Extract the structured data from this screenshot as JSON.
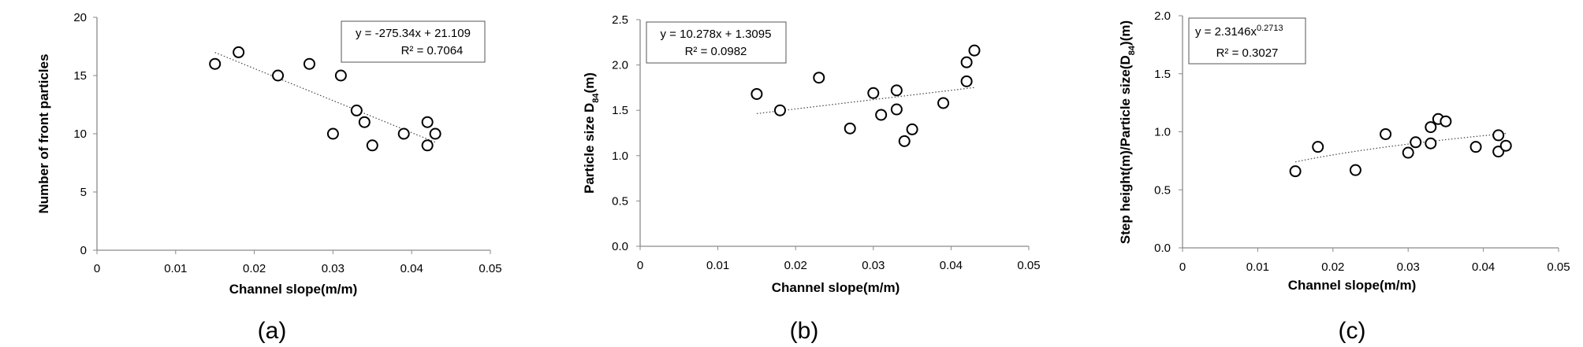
{
  "chart_data": [
    {
      "type": "scatter",
      "panel_label": "(a)",
      "xlabel": "Channel slope(m/m)",
      "ylabel": "Number of front particles",
      "xlim": [
        0,
        0.05
      ],
      "ylim": [
        0,
        20
      ],
      "x_ticks": [
        0,
        0.01,
        0.02,
        0.03,
        0.04,
        0.05
      ],
      "x_tick_labels": [
        "0",
        "0.01",
        "0.02",
        "0.03",
        "0.04",
        "0.05"
      ],
      "y_ticks": [
        0,
        5,
        10,
        15,
        20
      ],
      "y_tick_labels": [
        "0",
        "5",
        "10",
        "15",
        "20"
      ],
      "x": [
        0.015,
        0.018,
        0.023,
        0.027,
        0.03,
        0.031,
        0.033,
        0.034,
        0.035,
        0.039,
        0.042,
        0.042,
        0.043
      ],
      "y": [
        16,
        17,
        15,
        16,
        10,
        15,
        12,
        11,
        9,
        10,
        11,
        9,
        10
      ],
      "trendline": {
        "kind": "linear",
        "a": -275.34,
        "b": 21.109,
        "x_range": [
          0.015,
          0.043
        ]
      },
      "equation_lines": [
        "y = -275.34x + 21.109",
        "R² = 0.7064"
      ],
      "equation_box": "top-right"
    },
    {
      "type": "scatter",
      "panel_label": "(b)",
      "xlabel": "Channel slope(m/m)",
      "ylabel": "Particle size D84(m)",
      "xlim": [
        0,
        0.05
      ],
      "ylim": [
        0,
        2.5
      ],
      "x_ticks": [
        0,
        0.01,
        0.02,
        0.03,
        0.04,
        0.05
      ],
      "x_tick_labels": [
        "0",
        "0.01",
        "0.02",
        "0.03",
        "0.04",
        "0.05"
      ],
      "y_ticks": [
        0,
        0.5,
        1.0,
        1.5,
        2.0,
        2.5
      ],
      "y_tick_labels": [
        "0.0",
        "0.5",
        "1.0",
        "1.5",
        "2.0",
        "2.5"
      ],
      "x": [
        0.015,
        0.018,
        0.023,
        0.027,
        0.03,
        0.031,
        0.033,
        0.033,
        0.034,
        0.035,
        0.039,
        0.042,
        0.042,
        0.043
      ],
      "y": [
        1.68,
        1.5,
        1.86,
        1.3,
        1.69,
        1.45,
        1.72,
        1.51,
        1.16,
        1.29,
        1.58,
        2.03,
        1.82,
        2.16
      ],
      "trendline": {
        "kind": "linear",
        "a": 10.278,
        "b": 1.3095,
        "x_range": [
          0.015,
          0.043
        ]
      },
      "equation_lines": [
        "y = 10.278x + 1.3095",
        "R² = 0.0982"
      ],
      "equation_box": "top-left"
    },
    {
      "type": "scatter",
      "panel_label": "(c)",
      "xlabel": "Channel slope(m/m)",
      "ylabel": "Step height(m)/Particle size(D84)(m)",
      "xlim": [
        0,
        0.05
      ],
      "ylim": [
        0,
        2.0
      ],
      "x_ticks": [
        0,
        0.01,
        0.02,
        0.03,
        0.04,
        0.05
      ],
      "x_tick_labels": [
        "0",
        "0.01",
        "0.02",
        "0.03",
        "0.04",
        "0.05"
      ],
      "y_ticks": [
        0,
        0.5,
        1.0,
        1.5,
        2.0
      ],
      "y_tick_labels": [
        "0.0",
        "0.5",
        "1.0",
        "1.5",
        "2.0"
      ],
      "x": [
        0.015,
        0.018,
        0.023,
        0.027,
        0.03,
        0.031,
        0.033,
        0.033,
        0.034,
        0.035,
        0.039,
        0.042,
        0.042,
        0.043
      ],
      "y": [
        0.66,
        0.87,
        0.67,
        0.98,
        0.82,
        0.91,
        0.9,
        1.04,
        1.11,
        1.09,
        0.87,
        0.97,
        0.83,
        0.88
      ],
      "trendline": {
        "kind": "power",
        "a": 2.3146,
        "b": 0.2713,
        "x_range": [
          0.015,
          0.043
        ]
      },
      "equation_lines": [
        "y = 2.3146x",
        "0.2713",
        "R² = 0.3027"
      ],
      "equation_box": "top-left"
    }
  ]
}
